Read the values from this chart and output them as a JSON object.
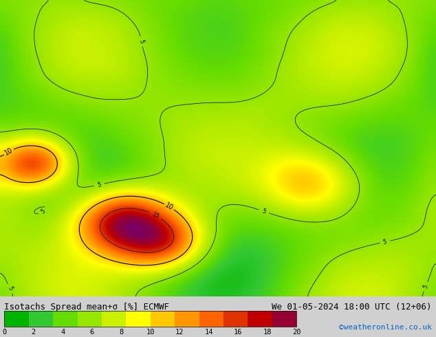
{
  "title_left": "Isotachs Spread mean+σ [%] ECMWF",
  "title_right": "We 01-05-2024 18:00 UTC (12+06)",
  "credit": "©weatheronline.co.uk",
  "colorbar_ticks": [
    0,
    2,
    4,
    6,
    8,
    10,
    12,
    14,
    16,
    18,
    20
  ],
  "colorbar_colors": [
    "#00b400",
    "#32c832",
    "#64dc00",
    "#96e600",
    "#c8f000",
    "#ffff00",
    "#ffc800",
    "#ff9600",
    "#ff6400",
    "#e03200",
    "#c00000",
    "#960032",
    "#780064"
  ],
  "bg_color": "#d0d0d0",
  "map_bg": "#a0c080",
  "title_fontsize": 9,
  "credit_fontsize": 8,
  "credit_color": "#0064c8",
  "figsize": [
    6.34,
    4.9
  ],
  "dpi": 100
}
